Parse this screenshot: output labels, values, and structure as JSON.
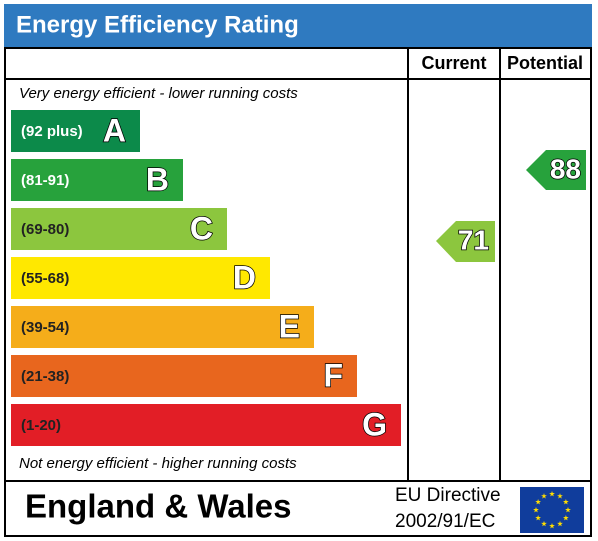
{
  "title": "Energy Efficiency Rating",
  "columns": [
    "Current",
    "Potential"
  ],
  "top_note": "Very energy efficient - lower running costs",
  "bottom_note": "Not energy efficient - higher running costs",
  "bands": [
    {
      "range": "(92 plus)",
      "letter": "A",
      "color": "#0c8a4a"
    },
    {
      "range": "(81-91)",
      "letter": "B",
      "color": "#27a23c"
    },
    {
      "range": "(69-80)",
      "letter": "C",
      "color": "#8cc63e"
    },
    {
      "range": "(55-68)",
      "letter": "D",
      "color": "#ffe800"
    },
    {
      "range": "(39-54)",
      "letter": "E",
      "color": "#f5ad1a"
    },
    {
      "range": "(21-38)",
      "letter": "F",
      "color": "#e8661e"
    },
    {
      "range": "(1-20)",
      "letter": "G",
      "color": "#e21e26"
    }
  ],
  "current": 71,
  "potential": 88,
  "footer": {
    "region": "England & Wales",
    "directive_line1": "EU Directive",
    "directive_line2": "2002/91/EC"
  }
}
